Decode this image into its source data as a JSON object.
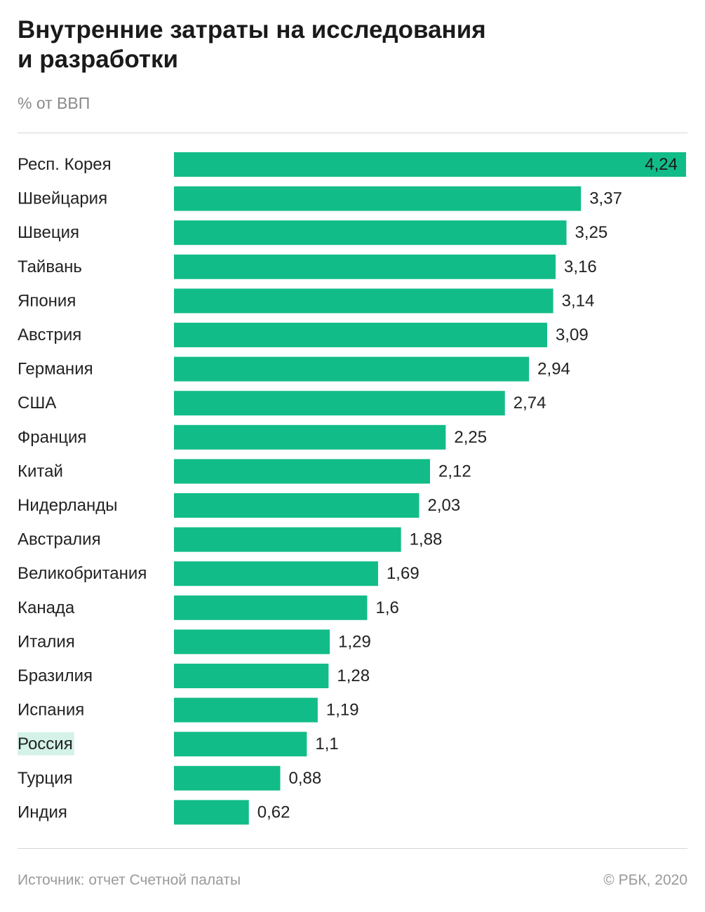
{
  "header": {
    "title": "Внутренние затраты на исследования\nи разработки",
    "subtitle": "% от ВВП"
  },
  "footer": {
    "source": "Источник: отчет Счетной палаты",
    "copyright": "© РБК, 2020"
  },
  "colors": {
    "bar": "#12bc88",
    "highlight": "#d4f2e7",
    "label_text": "#222222",
    "value_text": "#222222",
    "value_text_inside": "#1a1a1a"
  },
  "chart_data": {
    "type": "bar",
    "orientation": "horizontal",
    "title": "Внутренние затраты на исследования и разработки",
    "subtitle": "% от ВВП",
    "xlim": [
      0,
      4.24
    ],
    "grid": false,
    "legend": "none",
    "highlighted_category": "Россия",
    "categories": [
      "Респ. Корея",
      "Швейцария",
      "Швеция",
      "Тайвань",
      "Япония",
      "Австрия",
      "Германия",
      "США",
      "Франция",
      "Китай",
      "Нидерланды",
      "Австралия",
      "Великобритания",
      "Канада",
      "Италия",
      "Бразилия",
      "Испания",
      "Россия",
      "Турция",
      "Индия"
    ],
    "values": [
      4.24,
      3.37,
      3.25,
      3.16,
      3.14,
      3.09,
      2.94,
      2.74,
      2.25,
      2.12,
      2.03,
      1.88,
      1.69,
      1.6,
      1.29,
      1.28,
      1.19,
      1.1,
      0.88,
      0.62
    ],
    "value_labels": [
      "4,24",
      "3,37",
      "3,25",
      "3,16",
      "3,14",
      "3,09",
      "2,94",
      "2,74",
      "2,25",
      "2,12",
      "2,03",
      "1,88",
      "1,69",
      "1,6",
      "1,29",
      "1,28",
      "1,19",
      "1,1",
      "0,88",
      "0,62"
    ]
  }
}
